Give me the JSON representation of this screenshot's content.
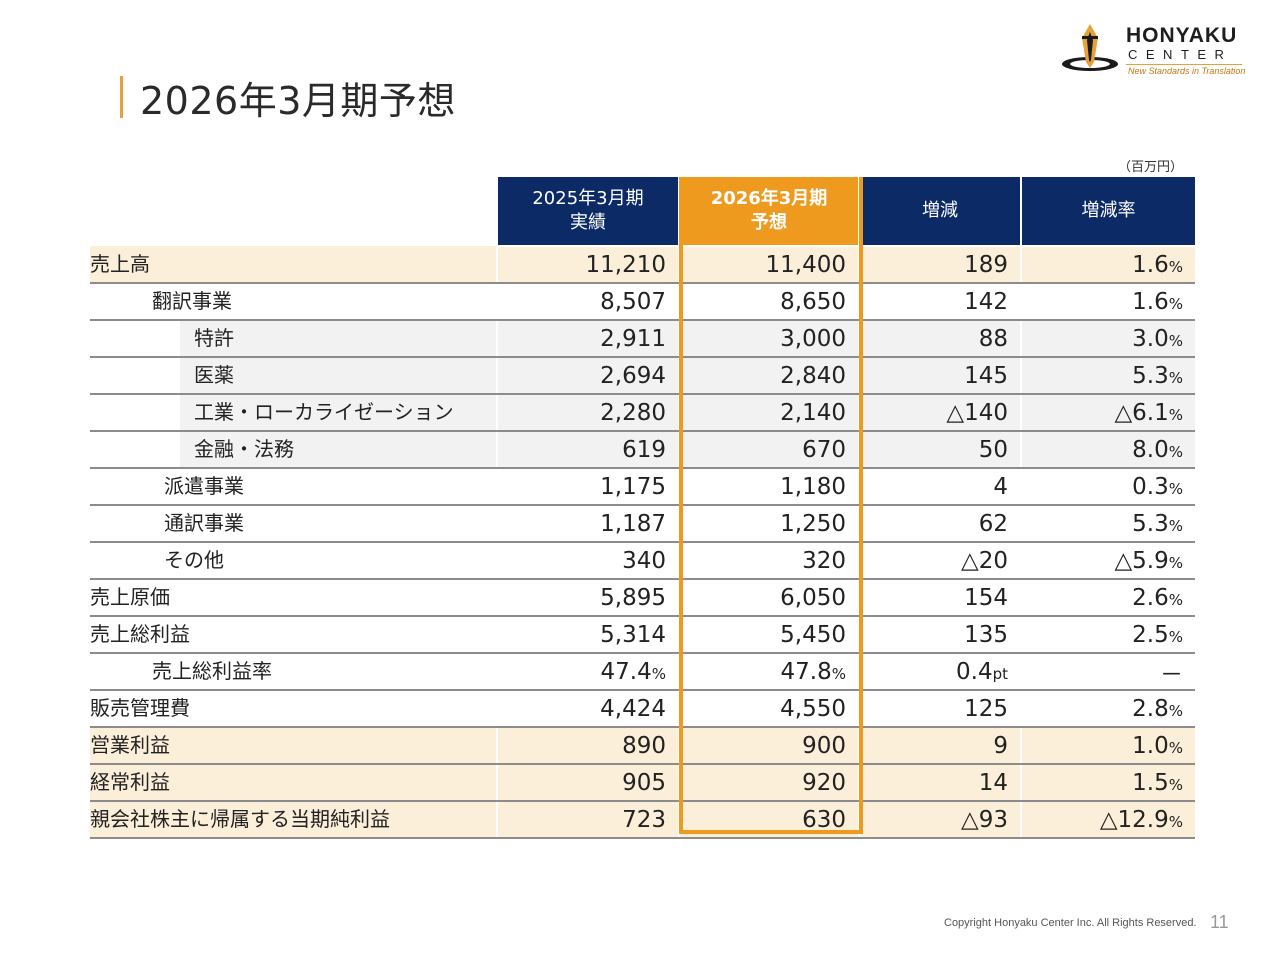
{
  "title": "2026年3月期予想",
  "logo": {
    "name": "HONYAKU",
    "sub": "CENTER",
    "tagline": "New Standards in Translation"
  },
  "unit": "（百万円）",
  "header": {
    "col1": "2025年3月期\n実績",
    "col2": "2026年3月期\n予想",
    "col3": "増減",
    "col4": "増減率"
  },
  "rows": [
    {
      "label": "売上高",
      "actual": "11,210",
      "actual_sfx": "",
      "forecast": "11,400",
      "forecast_sfx": "",
      "change": "189",
      "change_sfx": "",
      "rate": "1.6",
      "rate_sfx": "%"
    },
    {
      "label": "翻訳事業",
      "actual": "8,507",
      "actual_sfx": "",
      "forecast": "8,650",
      "forecast_sfx": "",
      "change": "142",
      "change_sfx": "",
      "rate": "1.6",
      "rate_sfx": "%"
    },
    {
      "label": "特許",
      "actual": "2,911",
      "actual_sfx": "",
      "forecast": "3,000",
      "forecast_sfx": "",
      "change": "88",
      "change_sfx": "",
      "rate": "3.0",
      "rate_sfx": "%"
    },
    {
      "label": "医薬",
      "actual": "2,694",
      "actual_sfx": "",
      "forecast": "2,840",
      "forecast_sfx": "",
      "change": "145",
      "change_sfx": "",
      "rate": "5.3",
      "rate_sfx": "%"
    },
    {
      "label": "工業・ローカライゼーション",
      "actual": "2,280",
      "actual_sfx": "",
      "forecast": "2,140",
      "forecast_sfx": "",
      "change": "△140",
      "change_sfx": "",
      "rate": "△6.1",
      "rate_sfx": "%"
    },
    {
      "label": "金融・法務",
      "actual": "619",
      "actual_sfx": "",
      "forecast": "670",
      "forecast_sfx": "",
      "change": "50",
      "change_sfx": "",
      "rate": "8.0",
      "rate_sfx": "%"
    },
    {
      "label": "派遣事業",
      "actual": "1,175",
      "actual_sfx": "",
      "forecast": "1,180",
      "forecast_sfx": "",
      "change": "4",
      "change_sfx": "",
      "rate": "0.3",
      "rate_sfx": "%"
    },
    {
      "label": "通訳事業",
      "actual": "1,187",
      "actual_sfx": "",
      "forecast": "1,250",
      "forecast_sfx": "",
      "change": "62",
      "change_sfx": "",
      "rate": "5.3",
      "rate_sfx": "%"
    },
    {
      "label": "その他",
      "actual": "340",
      "actual_sfx": "",
      "forecast": "320",
      "forecast_sfx": "",
      "change": "△20",
      "change_sfx": "",
      "rate": "△5.9",
      "rate_sfx": "%"
    },
    {
      "label": "売上原価",
      "actual": "5,895",
      "actual_sfx": "",
      "forecast": "6,050",
      "forecast_sfx": "",
      "change": "154",
      "change_sfx": "",
      "rate": "2.6",
      "rate_sfx": "%"
    },
    {
      "label": "売上総利益",
      "actual": "5,314",
      "actual_sfx": "",
      "forecast": "5,450",
      "forecast_sfx": "",
      "change": "135",
      "change_sfx": "",
      "rate": "2.5",
      "rate_sfx": "%"
    },
    {
      "label": "売上総利益率",
      "actual": "47.4",
      "actual_sfx": "%",
      "forecast": "47.8",
      "forecast_sfx": "%",
      "change": "0.4",
      "change_sfx": "pt",
      "rate": "－",
      "rate_sfx": ""
    },
    {
      "label": "販売管理費",
      "actual": "4,424",
      "actual_sfx": "",
      "forecast": "4,550",
      "forecast_sfx": "",
      "change": "125",
      "change_sfx": "",
      "rate": "2.8",
      "rate_sfx": "%"
    },
    {
      "label": "営業利益",
      "actual": "890",
      "actual_sfx": "",
      "forecast": "900",
      "forecast_sfx": "",
      "change": "9",
      "change_sfx": "",
      "rate": "1.0",
      "rate_sfx": "%"
    },
    {
      "label": "経常利益",
      "actual": "905",
      "actual_sfx": "",
      "forecast": "920",
      "forecast_sfx": "",
      "change": "14",
      "change_sfx": "",
      "rate": "1.5",
      "rate_sfx": "%"
    },
    {
      "label": "親会社株主に帰属する当期純利益",
      "actual": "723",
      "actual_sfx": "",
      "forecast": "630",
      "forecast_sfx": "",
      "change": "△93",
      "change_sfx": "",
      "rate": "△12.9",
      "rate_sfx": "%"
    }
  ],
  "footer": "Copyright Honyaku Center Inc. All Rights Reserved.",
  "page_number": "11",
  "colors": {
    "accent": "#EE9A1F",
    "header_navy": "#0B2A66",
    "shade": "#FCEFD9",
    "sub_shade": "#F2F2F2"
  }
}
